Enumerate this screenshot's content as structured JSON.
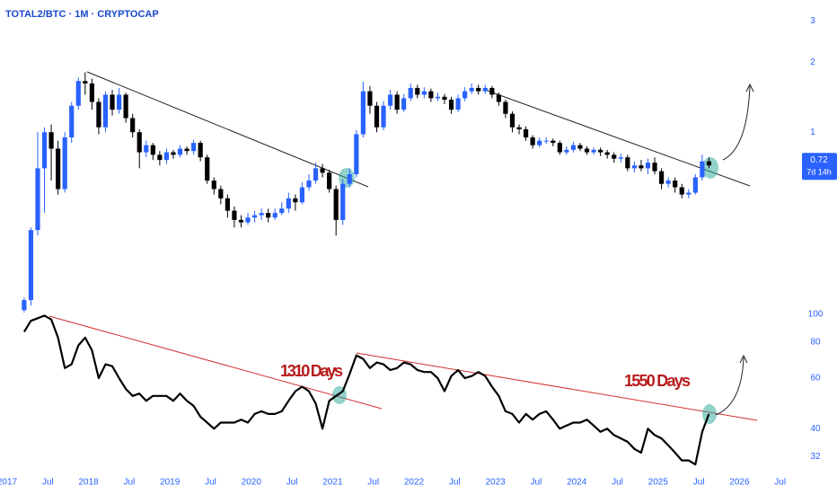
{
  "chart_data": [
    {
      "type": "candlestick",
      "title": "TOTAL2/BTC · 1M · CRYPTOCAP",
      "log_scale": true,
      "up_color": "#2962ff",
      "down_color": "#000000",
      "x": [
        "2017-03",
        "2017-04",
        "2017-05",
        "2017-06",
        "2017-07",
        "2017-08",
        "2017-09",
        "2017-10",
        "2017-11",
        "2017-12",
        "2018-01",
        "2018-02",
        "2018-03",
        "2018-04",
        "2018-05",
        "2018-06",
        "2018-07",
        "2018-08",
        "2018-09",
        "2018-10",
        "2018-11",
        "2018-12",
        "2019-01",
        "2019-02",
        "2019-03",
        "2019-04",
        "2019-05",
        "2019-06",
        "2019-07",
        "2019-08",
        "2019-09",
        "2019-10",
        "2019-11",
        "2019-12",
        "2020-01",
        "2020-02",
        "2020-03",
        "2020-04",
        "2020-05",
        "2020-06",
        "2020-07",
        "2020-08",
        "2020-09",
        "2020-10",
        "2020-11",
        "2020-12",
        "2021-01",
        "2021-02",
        "2021-03",
        "2021-04",
        "2021-05",
        "2021-06",
        "2021-07",
        "2021-08",
        "2021-09",
        "2021-10",
        "2021-11",
        "2021-12",
        "2022-01",
        "2022-02",
        "2022-03",
        "2022-04",
        "2022-05",
        "2022-06",
        "2022-07",
        "2022-08",
        "2022-09",
        "2022-10",
        "2022-11",
        "2022-12",
        "2023-01",
        "2023-02",
        "2023-03",
        "2023-04",
        "2023-05",
        "2023-06",
        "2023-07",
        "2023-08",
        "2023-09",
        "2023-10",
        "2023-11",
        "2023-12",
        "2024-01",
        "2024-02",
        "2024-03",
        "2024-04",
        "2024-05",
        "2024-06",
        "2024-07",
        "2024-08",
        "2024-09",
        "2024-10",
        "2024-11",
        "2024-12",
        "2025-01",
        "2025-02",
        "2025-03",
        "2025-04",
        "2025-05",
        "2025-06",
        "2025-07",
        "2025-08"
      ],
      "open": [
        0.172,
        0.19,
        0.38,
        0.7,
        1.0,
        0.85,
        0.57,
        0.95,
        1.3,
        1.66,
        1.62,
        1.35,
        1.05,
        1.45,
        1.25,
        1.45,
        1.15,
        1.0,
        0.82,
        0.88,
        0.8,
        0.76,
        0.82,
        0.8,
        0.85,
        0.83,
        0.9,
        0.78,
        0.62,
        0.57,
        0.52,
        0.46,
        0.42,
        0.41,
        0.43,
        0.44,
        0.45,
        0.43,
        0.45,
        0.47,
        0.52,
        0.5,
        0.58,
        0.62,
        0.7,
        0.67,
        0.57,
        0.42,
        0.6,
        0.66,
        0.98,
        1.5,
        1.3,
        1.05,
        1.3,
        1.45,
        1.25,
        1.4,
        1.55,
        1.45,
        1.5,
        1.4,
        1.42,
        1.38,
        1.25,
        1.4,
        1.5,
        1.55,
        1.5,
        1.55,
        1.45,
        1.35,
        1.2,
        1.05,
        1.03,
        0.95,
        0.88,
        0.92,
        0.92,
        0.9,
        0.82,
        0.84,
        0.88,
        0.85,
        0.82,
        0.84,
        0.82,
        0.8,
        0.77,
        0.78,
        0.7,
        0.72,
        0.7,
        0.74,
        0.68,
        0.6,
        0.62,
        0.58,
        0.54,
        0.55,
        0.64,
        0.75
      ],
      "high": [
        0.195,
        0.39,
        1.0,
        1.05,
        1.08,
        0.92,
        1.0,
        1.35,
        1.72,
        1.81,
        1.7,
        1.4,
        1.5,
        1.52,
        1.55,
        1.48,
        1.2,
        1.03,
        0.92,
        0.9,
        0.83,
        0.85,
        0.84,
        0.88,
        0.87,
        0.93,
        0.92,
        0.8,
        0.64,
        0.59,
        0.54,
        0.48,
        0.44,
        0.45,
        0.46,
        0.47,
        0.47,
        0.47,
        0.5,
        0.55,
        0.54,
        0.61,
        0.66,
        0.74,
        0.73,
        0.69,
        0.59,
        0.63,
        0.7,
        1.02,
        1.65,
        1.58,
        1.35,
        1.36,
        1.52,
        1.5,
        1.46,
        1.62,
        1.6,
        1.56,
        1.54,
        1.48,
        1.46,
        1.42,
        1.45,
        1.56,
        1.62,
        1.6,
        1.6,
        1.58,
        1.48,
        1.38,
        1.23,
        1.08,
        1.06,
        0.97,
        0.95,
        0.95,
        0.94,
        0.92,
        0.87,
        0.91,
        0.9,
        0.87,
        0.86,
        0.86,
        0.84,
        0.82,
        0.81,
        0.8,
        0.75,
        0.76,
        0.77,
        0.78,
        0.7,
        0.64,
        0.64,
        0.6,
        0.57,
        0.66,
        0.8,
        0.78
      ],
      "low": [
        0.168,
        0.18,
        0.36,
        0.45,
        0.62,
        0.54,
        0.55,
        0.9,
        1.25,
        1.45,
        1.25,
        0.98,
        1.0,
        1.18,
        1.2,
        1.1,
        0.95,
        0.7,
        0.78,
        0.76,
        0.72,
        0.73,
        0.77,
        0.78,
        0.8,
        0.8,
        0.75,
        0.6,
        0.54,
        0.49,
        0.43,
        0.39,
        0.39,
        0.4,
        0.41,
        0.42,
        0.41,
        0.42,
        0.44,
        0.45,
        0.46,
        0.49,
        0.56,
        0.6,
        0.64,
        0.55,
        0.36,
        0.4,
        0.58,
        0.64,
        0.95,
        1.2,
        1.0,
        1.02,
        1.25,
        1.2,
        1.22,
        1.36,
        1.4,
        1.4,
        1.35,
        1.36,
        1.32,
        1.2,
        1.22,
        1.36,
        1.46,
        1.45,
        1.46,
        1.4,
        1.3,
        1.15,
        1.0,
        0.98,
        0.92,
        0.85,
        0.86,
        0.89,
        0.87,
        0.8,
        0.8,
        0.82,
        0.83,
        0.8,
        0.8,
        0.79,
        0.77,
        0.74,
        0.74,
        0.68,
        0.67,
        0.68,
        0.66,
        0.66,
        0.57,
        0.58,
        0.55,
        0.52,
        0.52,
        0.54,
        0.62,
        0.7
      ],
      "close": [
        0.19,
        0.38,
        0.7,
        1.0,
        0.85,
        0.57,
        0.95,
        1.3,
        1.66,
        1.62,
        1.35,
        1.05,
        1.45,
        1.25,
        1.45,
        1.15,
        1.0,
        0.82,
        0.88,
        0.8,
        0.76,
        0.82,
        0.8,
        0.85,
        0.83,
        0.9,
        0.78,
        0.62,
        0.57,
        0.52,
        0.46,
        0.42,
        0.41,
        0.43,
        0.44,
        0.45,
        0.43,
        0.45,
        0.47,
        0.52,
        0.5,
        0.58,
        0.62,
        0.7,
        0.67,
        0.57,
        0.42,
        0.6,
        0.66,
        0.98,
        1.5,
        1.3,
        1.05,
        1.3,
        1.45,
        1.25,
        1.4,
        1.55,
        1.45,
        1.5,
        1.4,
        1.42,
        1.38,
        1.25,
        1.4,
        1.5,
        1.55,
        1.5,
        1.55,
        1.45,
        1.35,
        1.2,
        1.05,
        1.03,
        0.95,
        0.88,
        0.92,
        0.92,
        0.9,
        0.82,
        0.84,
        0.88,
        0.85,
        0.82,
        0.84,
        0.82,
        0.8,
        0.77,
        0.78,
        0.7,
        0.72,
        0.7,
        0.74,
        0.68,
        0.6,
        0.62,
        0.58,
        0.54,
        0.55,
        0.64,
        0.75,
        0.72
      ],
      "ylim": [
        0.165,
        3.7
      ],
      "yticks": [
        1,
        2,
        3
      ],
      "last_price": {
        "value": 0.72,
        "countdown": "7d 14h"
      },
      "xticks": [
        {
          "value": "2017-01",
          "label": "2017"
        },
        {
          "value": "2017-07",
          "label": "Jul"
        },
        {
          "value": "2018-01",
          "label": "2018"
        },
        {
          "value": "2018-07",
          "label": "Jul"
        },
        {
          "value": "2019-01",
          "label": "2019"
        },
        {
          "value": "2019-07",
          "label": "Jul"
        },
        {
          "value": "2020-01",
          "label": "2020"
        },
        {
          "value": "2020-07",
          "label": "Jul"
        },
        {
          "value": "2021-01",
          "label": "2021"
        },
        {
          "value": "2021-07",
          "label": "Jul"
        },
        {
          "value": "2022-01",
          "label": "2022"
        },
        {
          "value": "2022-07",
          "label": "Jul"
        },
        {
          "value": "2023-01",
          "label": "2023"
        },
        {
          "value": "2023-07",
          "label": "Jul"
        },
        {
          "value": "2024-01",
          "label": "2024"
        },
        {
          "value": "2024-07",
          "label": "Jul"
        },
        {
          "value": "2025-01",
          "label": "2025"
        },
        {
          "value": "2025-07",
          "label": "Jul"
        },
        {
          "value": "2026-01",
          "label": "2026"
        },
        {
          "value": "2026-07",
          "label": "Jul"
        }
      ]
    },
    {
      "type": "line",
      "log_scale": true,
      "color": "#000000",
      "x": [
        "2017-03",
        "2017-04",
        "2017-05",
        "2017-06",
        "2017-07",
        "2017-08",
        "2017-09",
        "2017-10",
        "2017-11",
        "2017-12",
        "2018-01",
        "2018-02",
        "2018-03",
        "2018-04",
        "2018-05",
        "2018-06",
        "2018-07",
        "2018-08",
        "2018-09",
        "2018-10",
        "2018-11",
        "2018-12",
        "2019-01",
        "2019-02",
        "2019-03",
        "2019-04",
        "2019-05",
        "2019-06",
        "2019-07",
        "2019-08",
        "2019-09",
        "2019-10",
        "2019-11",
        "2019-12",
        "2020-01",
        "2020-02",
        "2020-03",
        "2020-04",
        "2020-05",
        "2020-06",
        "2020-07",
        "2020-08",
        "2020-09",
        "2020-10",
        "2020-11",
        "2020-12",
        "2021-01",
        "2021-02",
        "2021-03",
        "2021-04",
        "2021-05",
        "2021-06",
        "2021-07",
        "2021-08",
        "2021-09",
        "2021-10",
        "2021-11",
        "2021-12",
        "2022-01",
        "2022-02",
        "2022-03",
        "2022-04",
        "2022-05",
        "2022-06",
        "2022-07",
        "2022-08",
        "2022-09",
        "2022-10",
        "2022-11",
        "2022-12",
        "2023-01",
        "2023-02",
        "2023-03",
        "2023-04",
        "2023-05",
        "2023-06",
        "2023-07",
        "2023-08",
        "2023-09",
        "2023-10",
        "2023-11",
        "2023-12",
        "2024-01",
        "2024-02",
        "2024-03",
        "2024-04",
        "2024-05",
        "2024-06",
        "2024-07",
        "2024-08",
        "2024-09",
        "2024-10",
        "2024-11",
        "2024-12",
        "2025-01",
        "2025-02",
        "2025-03",
        "2025-04",
        "2025-05",
        "2025-06",
        "2025-07",
        "2025-08"
      ],
      "values": [
        87,
        95,
        97,
        99,
        96,
        83,
        65,
        67,
        78,
        83,
        75,
        60,
        67,
        66,
        60,
        55,
        52,
        53,
        50,
        52,
        52,
        52,
        50,
        53,
        50,
        48,
        44,
        42,
        40,
        42,
        42,
        42,
        43,
        42,
        45,
        46,
        45,
        45,
        46,
        50,
        54,
        56,
        54,
        49,
        40,
        50,
        52,
        54,
        62,
        72,
        70,
        65,
        68,
        67,
        64,
        65,
        68,
        67,
        64,
        63,
        63,
        60,
        54,
        61,
        64,
        60,
        61,
        63,
        61,
        56,
        52,
        46,
        45,
        42,
        45,
        43,
        45,
        46,
        43,
        40,
        41,
        42,
        42,
        43,
        41,
        39,
        40,
        38,
        37,
        36,
        34,
        33,
        40,
        38,
        37,
        35,
        33,
        31,
        31,
        30,
        39,
        45
      ],
      "ylim": [
        29.4,
        107.5
      ],
      "yticks": [
        32,
        40,
        60,
        80,
        100
      ],
      "annotations": [
        "1310 Days",
        "1550 Days"
      ]
    }
  ]
}
